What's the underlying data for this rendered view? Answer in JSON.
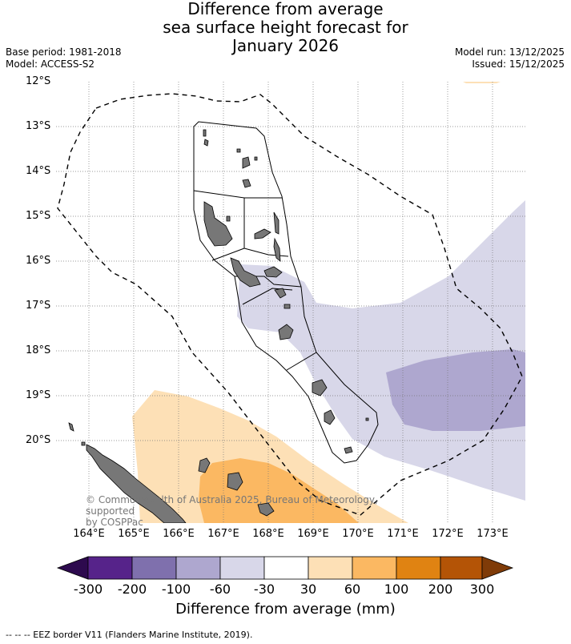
{
  "title": {
    "line1": "Difference from average",
    "line2": "sea surface height forecast for",
    "line3": "January 2026"
  },
  "info": {
    "base_period": "Base period: 1981-2018",
    "model": "Model: ACCESS-S2",
    "model_run": "Model run: 13/12/2025",
    "issued": "Issued: 15/12/2025"
  },
  "map": {
    "lat_labels": [
      "12°S",
      "13°S",
      "14°S",
      "15°S",
      "16°S",
      "17°S",
      "18°S",
      "19°S",
      "20°S"
    ],
    "lon_labels": [
      "164°E",
      "165°E",
      "166°E",
      "167°E",
      "168°E",
      "169°E",
      "170°E",
      "171°E",
      "172°E",
      "173°E"
    ],
    "credit_line1": "© Commonwealth of Australia 2025, Bureau of Meteorology, supported",
    "credit_line2": "by COSPPac"
  },
  "colorbar": {
    "title": "Difference from average (mm)",
    "ticks": [
      "-300",
      "-200",
      "-100",
      "-60",
      "-30",
      "30",
      "60",
      "100",
      "200",
      "300"
    ],
    "colors": {
      "under": "#2d0a4e",
      "c1": "#56238a",
      "c2": "#7f70ad",
      "c3": "#aea7cf",
      "c4": "#d8d7e9",
      "c5": "#ffffff",
      "c6": "#fde0b6",
      "c7": "#fbb862",
      "c8": "#e08312",
      "c9": "#b45406",
      "over": "#7f3b08"
    }
  },
  "legend": {
    "eez": "--  --  -- EEZ border V11 (Flanders Marine Institute, 2019)."
  }
}
